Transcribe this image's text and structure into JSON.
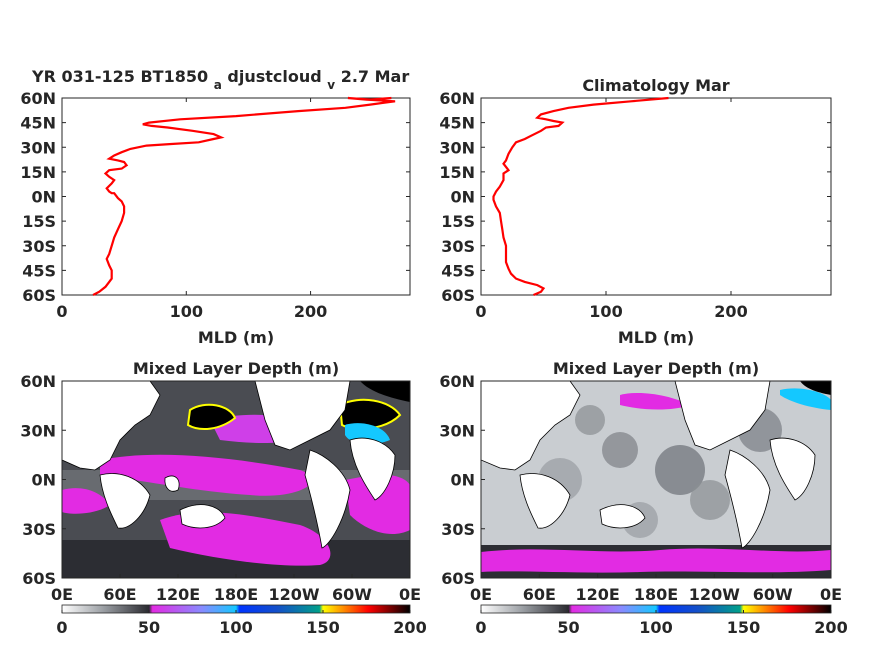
{
  "chart_data": [
    {
      "type": "line",
      "title_main": "YR 031-125 BT1850",
      "title_sub1": "a",
      "title_mid": "djustcloud",
      "title_sub2": "v",
      "title_end": "2.7 Mar",
      "xlabel": "MLD (m)",
      "xlim": [
        0,
        280
      ],
      "ylim": [
        -60,
        60
      ],
      "xticks": [
        "0",
        "100",
        "200"
      ],
      "yticks": [
        "60N",
        "45N",
        "30N",
        "15N",
        "0N",
        "15S",
        "30S",
        "45S",
        "60S"
      ],
      "line_color": "#ff0000",
      "series": [
        {
          "x": [
            25,
            30,
            35,
            38,
            40,
            40,
            38,
            36,
            38,
            40,
            42,
            45,
            48,
            50,
            50,
            48,
            45,
            42,
            40,
            38,
            36,
            40,
            42,
            38,
            35,
            38,
            48,
            52,
            50,
            45,
            38,
            42,
            48,
            55,
            68,
            88,
            110,
            122,
            128,
            122,
            105,
            85,
            72,
            65,
            70,
            95,
            140,
            190,
            228,
            248,
            268,
            245,
            230,
            248,
            265
          ],
          "y": [
            -60,
            -58,
            -55,
            -52,
            -50,
            -45,
            -42,
            -38,
            -35,
            -30,
            -25,
            -20,
            -15,
            -10,
            -6,
            -3,
            -1,
            2,
            2,
            3,
            5,
            8,
            10,
            12,
            14,
            16,
            17,
            19,
            21,
            22,
            23,
            25,
            27,
            29,
            31,
            32,
            33,
            35,
            36,
            38,
            40,
            42,
            43,
            44,
            45,
            47,
            49,
            52,
            54,
            56,
            58,
            59,
            60,
            59,
            60
          ]
        }
      ]
    },
    {
      "type": "line",
      "title": "Climatology Mar",
      "xlabel": "MLD (m)",
      "xlim": [
        0,
        280
      ],
      "ylim": [
        -60,
        60
      ],
      "xticks": [
        "0",
        "100",
        "200"
      ],
      "yticks": [
        "60N",
        "45N",
        "30N",
        "15N",
        "0N",
        "15S",
        "30S",
        "45S",
        "60S"
      ],
      "line_color": "#ff0000",
      "series": [
        {
          "x": [
            42,
            48,
            50,
            45,
            35,
            28,
            24,
            22,
            20,
            20,
            20,
            18,
            17,
            16,
            15,
            12,
            10,
            10,
            12,
            15,
            18,
            18,
            22,
            20,
            18,
            20,
            22,
            25,
            28,
            35,
            40,
            48,
            52,
            62,
            65,
            58,
            52,
            45,
            48,
            58,
            70,
            90,
            120,
            150
          ],
          "y": [
            -60,
            -58,
            -56,
            -54,
            -52,
            -50,
            -47,
            -44,
            -40,
            -35,
            -30,
            -25,
            -20,
            -15,
            -10,
            -6,
            -2,
            0,
            3,
            6,
            10,
            14,
            16,
            18,
            20,
            22,
            26,
            30,
            33,
            35,
            37,
            40,
            42,
            43,
            45,
            46,
            47,
            48,
            50,
            52,
            54,
            56,
            58,
            60
          ]
        }
      ]
    },
    {
      "type": "heatmap",
      "title": "Mixed Layer Depth (m)",
      "xticks": [
        "0E",
        "60E",
        "120E",
        "180E",
        "120W",
        "60W",
        "0E"
      ],
      "yticks": [
        "60N",
        "30N",
        "0N",
        "30S",
        "60S"
      ],
      "colorbar": {
        "ticks": [
          "0",
          "50",
          "100",
          "150",
          "200"
        ],
        "range": [
          0,
          200
        ],
        "stops": [
          "#ffffff",
          "#9a9ea3",
          "#2a2a30",
          "#e22be3",
          "#8a8aff",
          "#14c8ff",
          "#0034ff",
          "#1450c8",
          "#00a08a",
          "#ffff00",
          "#ff0000",
          "#000000"
        ]
      }
    },
    {
      "type": "heatmap",
      "title": "Mixed Layer Depth (m)",
      "xticks": [
        "0E",
        "60E",
        "120E",
        "180E",
        "120W",
        "60W",
        "0E"
      ],
      "yticks": [
        "60N",
        "30N",
        "0N",
        "30S",
        "60S"
      ],
      "colorbar": {
        "ticks": [
          "0",
          "50",
          "100",
          "150",
          "200"
        ],
        "range": [
          0,
          200
        ],
        "stops": [
          "#ffffff",
          "#9a9ea3",
          "#2a2a30",
          "#e22be3",
          "#8a8aff",
          "#14c8ff",
          "#0034ff",
          "#1450c8",
          "#00a08a",
          "#ffff00",
          "#ff0000",
          "#000000"
        ]
      }
    }
  ]
}
